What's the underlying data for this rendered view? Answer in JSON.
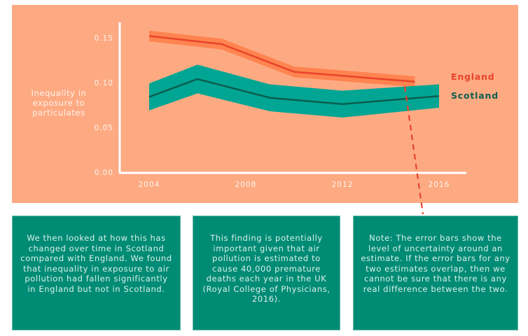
{
  "chart_data": {
    "type": "line",
    "title": "",
    "xlabel": "",
    "ylabel": "Inequality in exposure to particulates",
    "ylabel_lines": [
      "Inequality in",
      "exposure to",
      "particulates"
    ],
    "xlim": [
      2003,
      2017.5
    ],
    "ylim": [
      0,
      0.165
    ],
    "xticks": [
      2004,
      2008,
      2012,
      2016
    ],
    "xtick_labels": [
      "2004",
      "2008",
      "2012",
      "2016"
    ],
    "yticks": [
      0,
      0.05,
      0.1,
      0.15
    ],
    "ytick_labels": [
      "0.00",
      "0.05",
      "0.10",
      "0.15"
    ],
    "grid": false,
    "legend_placement": "right",
    "series": [
      {
        "name": "England",
        "color": "#e8432a",
        "band_color": "#ff8450",
        "label_color": "#e8432a",
        "x": [
          2004,
          2007,
          2010,
          2015
        ],
        "values": [
          0.152,
          0.143,
          0.112,
          0.101
        ],
        "error": [
          0.006,
          0.006,
          0.006,
          0.006
        ]
      },
      {
        "name": "Scotland",
        "color": "#0a5e4f",
        "band_color": "#00a693",
        "label_color": "#0a5e4f",
        "x": [
          2004,
          2006,
          2009,
          2012,
          2016
        ],
        "values": [
          0.084,
          0.104,
          0.083,
          0.076,
          0.085
        ],
        "error": [
          0.015,
          0.016,
          0.015,
          0.015,
          0.013
        ]
      }
    ],
    "annotations": [
      {
        "type": "dashed-connector",
        "color": "#e8432a",
        "description": "dashed line linking the chart to the note about error bars"
      }
    ]
  },
  "cards": [
    {
      "text": "We then looked at how this has changed over time in Scotland compared with England. We found that inequality in exposure to air pollution had fallen significantly in England but not in Scotland."
    },
    {
      "text": "This finding is potentially important given that air pollution is estimated to cause 40,000 premature deaths each year in the UK (Royal College of Physicians, 2016)."
    },
    {
      "text": "Note: The error bars show the level of uncertainty around an estimate. If the error bars for any two estimates overlap, then we cannot be sure that there is any real difference between the two."
    }
  ],
  "colors": {
    "panel_background": "#fdaa83",
    "card_background": "#008b75",
    "axis": "#ffffff",
    "tick_text": "#fff3ea"
  }
}
